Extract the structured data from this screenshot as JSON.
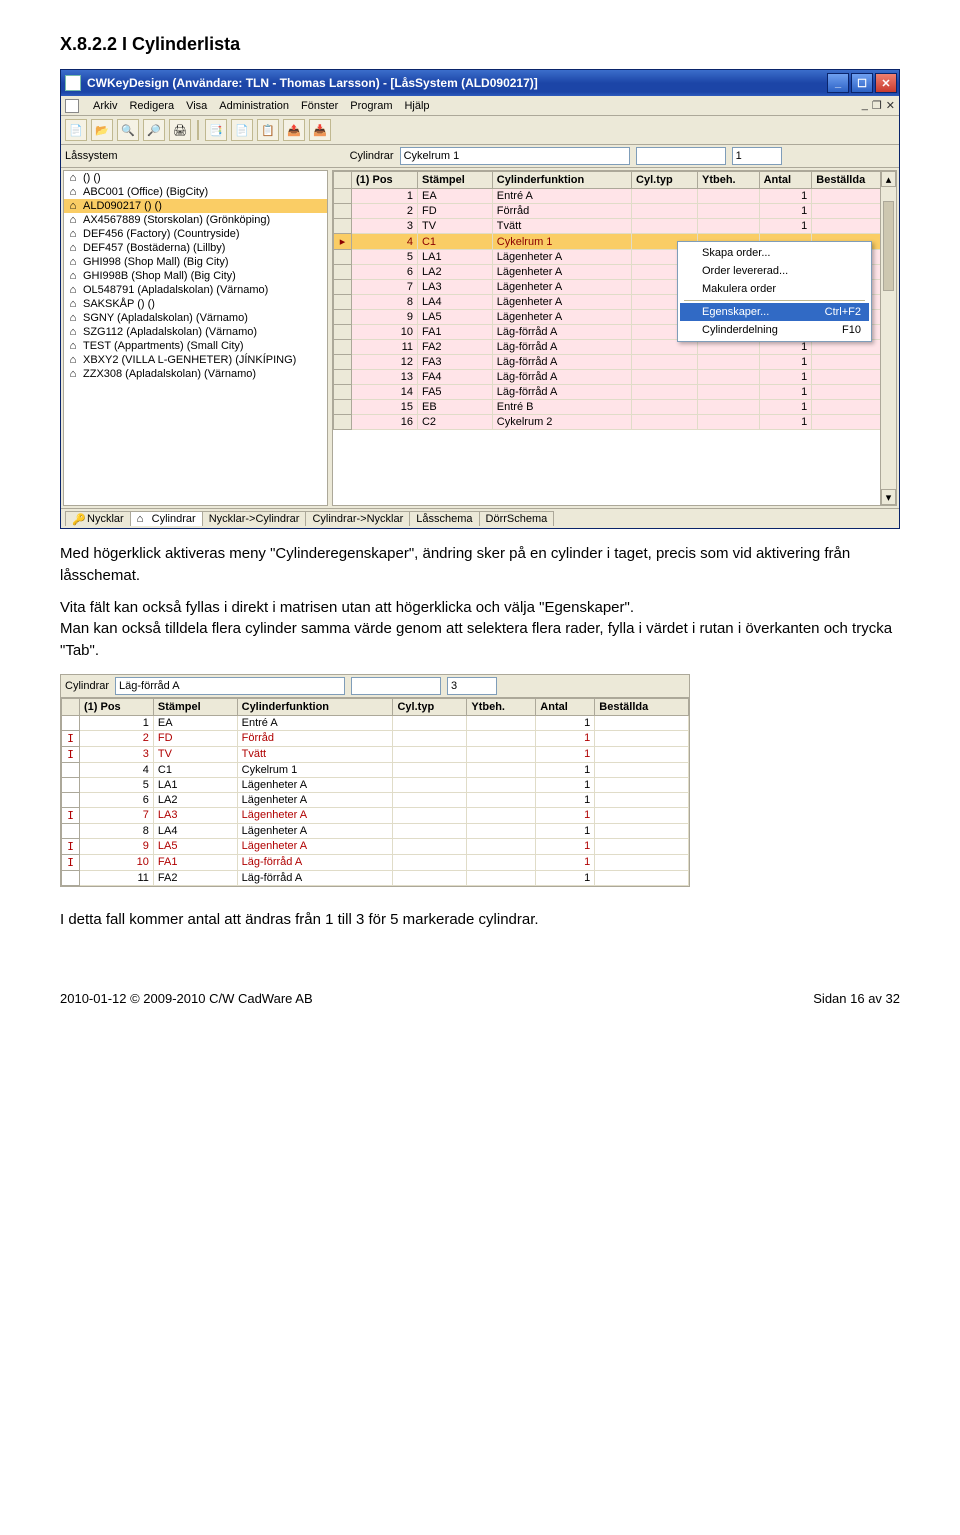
{
  "heading": "X.8.2.2 I Cylinderlista",
  "para1": "Med högerklick aktiveras meny \"Cylinderegenskaper\", ändring sker på en cylinder i taget, precis som vid aktivering från låsschemat.",
  "para2": "Vita fält kan också fyllas i direkt i matrisen utan att högerklicka och välja \"Egenskaper\".",
  "para3": "Man kan också tilldela flera cylinder samma värde genom att selektera flera rader, fylla i värdet i rutan i överkanten och trycka \"Tab\".",
  "para4": "I detta fall kommer antal att ändras från 1 till 3 för 5 markerade cylindrar.",
  "window": {
    "title": "CWKeyDesign    (Användare: TLN - Thomas Larsson) - [LåsSystem (ALD090217)]",
    "menu": [
      "Arkiv",
      "Redigera",
      "Visa",
      "Administration",
      "Fönster",
      "Program",
      "Hjälp"
    ],
    "field_label_left": "Låssystem",
    "field_label_mid": "Cylindrar",
    "field_value_mid": "Cykelrum 1",
    "field_value_right": "1",
    "left_items": [
      {
        "t": "() ()",
        "sel": false
      },
      {
        "t": "ABC001 (Office) (BigCity)",
        "sel": false
      },
      {
        "t": "ALD090217 () ()",
        "sel": true
      },
      {
        "t": "AX4567889 (Storskolan) (Grönköping)",
        "sel": false
      },
      {
        "t": "DEF456 (Factory) (Countryside)",
        "sel": false
      },
      {
        "t": "DEF457 (Bostäderna) (Lillby)",
        "sel": false
      },
      {
        "t": "GHI998 (Shop Mall) (Big City)",
        "sel": false
      },
      {
        "t": "GHI998B (Shop Mall) (Big City)",
        "sel": false
      },
      {
        "t": "OL548791 (Apladalskolan) (Värnamo)",
        "sel": false
      },
      {
        "t": "SAKSKÅP () ()",
        "sel": false
      },
      {
        "t": "SGNY (Apladalskolan) (Värnamo)",
        "sel": false
      },
      {
        "t": "SZG112 (Apladalskolan) (Värnamo)",
        "sel": false
      },
      {
        "t": "TEST (Appartments) (Small City)",
        "sel": false
      },
      {
        "t": "XBXY2 (VILLA L-GENHETER) (JÍNKÍPING)",
        "sel": false
      },
      {
        "t": "ZZX308 (Apladalskolan) (Värnamo)",
        "sel": false
      }
    ],
    "grid_headers": [
      "(1) Pos",
      "Stämpel",
      "Cylinderfunktion",
      "Cyl.typ",
      "Ytbeh.",
      "Antal",
      "Beställda"
    ],
    "grid_rows": [
      {
        "pos": "1",
        "st": "EA",
        "fn": "Entré A",
        "antal": "1",
        "sel": false,
        "red": false,
        "mark": ""
      },
      {
        "pos": "2",
        "st": "FD",
        "fn": "Förråd",
        "antal": "1",
        "sel": false,
        "red": false,
        "mark": ""
      },
      {
        "pos": "3",
        "st": "TV",
        "fn": "Tvätt",
        "antal": "1",
        "sel": false,
        "red": false,
        "mark": ""
      },
      {
        "pos": "4",
        "st": "C1",
        "fn": "Cykelrum 1",
        "antal": "",
        "sel": true,
        "red": true,
        "mark": "▸"
      },
      {
        "pos": "5",
        "st": "LA1",
        "fn": "Lägenheter A",
        "antal": "",
        "sel": false,
        "red": false,
        "mark": ""
      },
      {
        "pos": "6",
        "st": "LA2",
        "fn": "Lägenheter A",
        "antal": "",
        "sel": false,
        "red": false,
        "mark": ""
      },
      {
        "pos": "7",
        "st": "LA3",
        "fn": "Lägenheter A",
        "antal": "",
        "sel": false,
        "red": false,
        "mark": ""
      },
      {
        "pos": "8",
        "st": "LA4",
        "fn": "Lägenheter A",
        "antal": "",
        "sel": false,
        "red": false,
        "mark": ""
      },
      {
        "pos": "9",
        "st": "LA5",
        "fn": "Lägenheter A",
        "antal": "",
        "sel": false,
        "red": false,
        "mark": ""
      },
      {
        "pos": "10",
        "st": "FA1",
        "fn": "Läg-förråd A",
        "antal": "1",
        "sel": false,
        "red": false,
        "mark": ""
      },
      {
        "pos": "11",
        "st": "FA2",
        "fn": "Läg-förråd A",
        "antal": "1",
        "sel": false,
        "red": false,
        "mark": ""
      },
      {
        "pos": "12",
        "st": "FA3",
        "fn": "Läg-förråd A",
        "antal": "1",
        "sel": false,
        "red": false,
        "mark": ""
      },
      {
        "pos": "13",
        "st": "FA4",
        "fn": "Läg-förråd A",
        "antal": "1",
        "sel": false,
        "red": false,
        "mark": ""
      },
      {
        "pos": "14",
        "st": "FA5",
        "fn": "Läg-förråd A",
        "antal": "1",
        "sel": false,
        "red": false,
        "mark": ""
      },
      {
        "pos": "15",
        "st": "EB",
        "fn": "Entré B",
        "antal": "1",
        "sel": false,
        "red": false,
        "mark": ""
      },
      {
        "pos": "16",
        "st": "C2",
        "fn": "Cykelrum 2",
        "antal": "1",
        "sel": false,
        "red": false,
        "mark": ""
      }
    ],
    "context_menu": [
      {
        "t": "Skapa order...",
        "hl": false,
        "sc": ""
      },
      {
        "t": "Order levererad...",
        "hl": false,
        "sc": ""
      },
      {
        "t": "Makulera order",
        "hl": false,
        "sc": ""
      },
      {
        "t": "-",
        "hl": false,
        "sc": ""
      },
      {
        "t": "Egenskaper...",
        "hl": true,
        "sc": "Ctrl+F2"
      },
      {
        "t": "Cylinderdelning",
        "hl": false,
        "sc": "F10"
      }
    ],
    "bottom_tabs": [
      "Nycklar",
      "Cylindrar",
      "Nycklar->Cylindrar",
      "Cylindrar->Nycklar",
      "Låsschema",
      "DörrSchema"
    ]
  },
  "mini": {
    "field_label": "Cylindrar",
    "field_value": "Läg-förråd A",
    "field_right": "3",
    "headers": [
      "(1) Pos",
      "Stämpel",
      "Cylinderfunktion",
      "Cyl.typ",
      "Ytbeh.",
      "Antal",
      "Beställda"
    ],
    "rows": [
      {
        "m": "",
        "pos": "1",
        "st": "EA",
        "fn": "Entré A",
        "antal": "1",
        "red": false,
        "selA": false
      },
      {
        "m": "I",
        "pos": "2",
        "st": "FD",
        "fn": "Förråd",
        "antal": "1",
        "red": true,
        "selA": false
      },
      {
        "m": "I",
        "pos": "3",
        "st": "TV",
        "fn": "Tvätt",
        "antal": "1",
        "red": true,
        "selA": false
      },
      {
        "m": "",
        "pos": "4",
        "st": "C1",
        "fn": "Cykelrum 1",
        "antal": "1",
        "red": false,
        "selA": false
      },
      {
        "m": "",
        "pos": "5",
        "st": "LA1",
        "fn": "Lägenheter A",
        "antal": "1",
        "red": false,
        "selA": false
      },
      {
        "m": "",
        "pos": "6",
        "st": "LA2",
        "fn": "Lägenheter A",
        "antal": "1",
        "red": false,
        "selA": false
      },
      {
        "m": "I",
        "pos": "7",
        "st": "LA3",
        "fn": "Lägenheter A",
        "antal": "1",
        "red": true,
        "selA": false
      },
      {
        "m": "",
        "pos": "8",
        "st": "LA4",
        "fn": "Lägenheter A",
        "antal": "1",
        "red": false,
        "selA": false
      },
      {
        "m": "I",
        "pos": "9",
        "st": "LA5",
        "fn": "Lägenheter A",
        "antal": "1",
        "red": true,
        "selA": false
      },
      {
        "m": "I",
        "pos": "10",
        "st": "FA1",
        "fn": "Läg-förråd A",
        "antal": "1",
        "red": true,
        "selA": true
      },
      {
        "m": "",
        "pos": "11",
        "st": "FA2",
        "fn": "Läg-förråd A",
        "antal": "1",
        "red": false,
        "selA": false
      }
    ]
  },
  "footer": {
    "left": "2010-01-12  © 2009-2010 C/W CadWare AB",
    "right": "Sidan 16 av 32"
  },
  "icons": {
    "toolbar": [
      "📄",
      "📂",
      "🔍",
      "🔎",
      "🖨",
      "",
      "📑",
      "📄",
      "📋",
      "📤",
      "📥"
    ]
  }
}
